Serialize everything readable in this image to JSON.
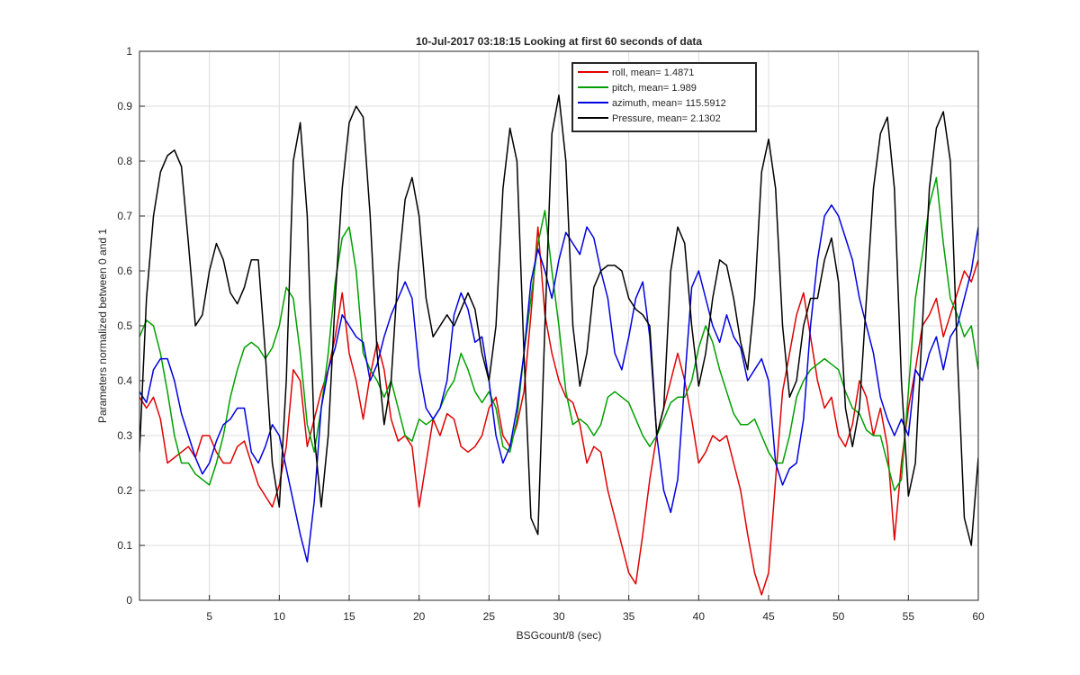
{
  "chart_data": {
    "type": "line",
    "title": "10-Jul-2017 03:18:15 Looking at first 60 seconds of data",
    "xlabel": "BSGcount/8 (sec)",
    "ylabel": "Parameters normalized between 0 and 1",
    "xlim": [
      0,
      60
    ],
    "ylim": [
      0,
      1
    ],
    "xticks": [
      5,
      10,
      15,
      20,
      25,
      30,
      35,
      40,
      45,
      50,
      55,
      60
    ],
    "yticks": [
      0,
      0.1,
      0.2,
      0.3,
      0.4,
      0.5,
      0.6,
      0.7,
      0.8,
      0.9,
      1
    ],
    "grid": true,
    "legend": "upper right",
    "x": [
      0,
      0.5,
      1,
      1.5,
      2,
      2.5,
      3,
      3.5,
      4,
      4.5,
      5,
      5.5,
      6,
      6.5,
      7,
      7.5,
      8,
      8.5,
      9,
      9.5,
      10,
      10.5,
      11,
      11.5,
      12,
      12.5,
      13,
      13.5,
      14,
      14.5,
      15,
      15.5,
      16,
      16.5,
      17,
      17.5,
      18,
      18.5,
      19,
      19.5,
      20,
      20.5,
      21,
      21.5,
      22,
      22.5,
      23,
      23.5,
      24,
      24.5,
      25,
      25.5,
      26,
      26.5,
      27,
      27.5,
      28,
      28.5,
      29,
      29.5,
      30,
      30.5,
      31,
      31.5,
      32,
      32.5,
      33,
      33.5,
      34,
      34.5,
      35,
      35.5,
      36,
      36.5,
      37,
      37.5,
      38,
      38.5,
      39,
      39.5,
      40,
      40.5,
      41,
      41.5,
      42,
      42.5,
      43,
      43.5,
      44,
      44.5,
      45,
      45.5,
      46,
      46.5,
      47,
      47.5,
      48,
      48.5,
      49,
      49.5,
      50,
      50.5,
      51,
      51.5,
      52,
      52.5,
      53,
      53.5,
      54,
      54.5,
      55,
      55.5,
      56,
      56.5,
      57,
      57.5,
      58,
      58.5,
      59,
      59.5,
      60
    ],
    "series": [
      {
        "name": "roll, mean= 1.4871",
        "color": "#e00000",
        "values": [
          0.37,
          0.35,
          0.37,
          0.33,
          0.25,
          0.26,
          0.27,
          0.28,
          0.26,
          0.3,
          0.3,
          0.27,
          0.25,
          0.25,
          0.28,
          0.29,
          0.25,
          0.21,
          0.19,
          0.17,
          0.21,
          0.28,
          0.42,
          0.4,
          0.28,
          0.33,
          0.38,
          0.42,
          0.48,
          0.56,
          0.45,
          0.4,
          0.33,
          0.41,
          0.47,
          0.42,
          0.33,
          0.29,
          0.3,
          0.28,
          0.17,
          0.25,
          0.33,
          0.3,
          0.34,
          0.33,
          0.28,
          0.27,
          0.28,
          0.3,
          0.35,
          0.37,
          0.3,
          0.28,
          0.32,
          0.38,
          0.52,
          0.68,
          0.52,
          0.45,
          0.4,
          0.37,
          0.36,
          0.32,
          0.25,
          0.28,
          0.27,
          0.2,
          0.15,
          0.1,
          0.05,
          0.03,
          0.12,
          0.22,
          0.3,
          0.35,
          0.4,
          0.45,
          0.4,
          0.33,
          0.25,
          0.27,
          0.3,
          0.29,
          0.3,
          0.25,
          0.2,
          0.12,
          0.05,
          0.01,
          0.05,
          0.22,
          0.38,
          0.45,
          0.52,
          0.56,
          0.48,
          0.4,
          0.35,
          0.37,
          0.3,
          0.28,
          0.32,
          0.4,
          0.37,
          0.3,
          0.35,
          0.28,
          0.11,
          0.25,
          0.35,
          0.42,
          0.5,
          0.52,
          0.55,
          0.48,
          0.52,
          0.56,
          0.6,
          0.58,
          0.62
        ]
      },
      {
        "name": "pitch, mean= 1.989",
        "color": "#00a000",
        "values": [
          0.48,
          0.51,
          0.5,
          0.45,
          0.38,
          0.3,
          0.25,
          0.25,
          0.23,
          0.22,
          0.21,
          0.25,
          0.3,
          0.37,
          0.42,
          0.46,
          0.47,
          0.46,
          0.44,
          0.46,
          0.5,
          0.57,
          0.55,
          0.45,
          0.32,
          0.27,
          0.35,
          0.45,
          0.58,
          0.66,
          0.68,
          0.6,
          0.45,
          0.42,
          0.4,
          0.37,
          0.4,
          0.35,
          0.3,
          0.29,
          0.33,
          0.32,
          0.33,
          0.35,
          0.38,
          0.4,
          0.45,
          0.42,
          0.38,
          0.36,
          0.38,
          0.35,
          0.28,
          0.27,
          0.33,
          0.45,
          0.55,
          0.65,
          0.71,
          0.6,
          0.5,
          0.38,
          0.32,
          0.33,
          0.32,
          0.3,
          0.32,
          0.37,
          0.38,
          0.37,
          0.36,
          0.33,
          0.3,
          0.28,
          0.3,
          0.33,
          0.36,
          0.37,
          0.37,
          0.4,
          0.46,
          0.5,
          0.47,
          0.42,
          0.38,
          0.34,
          0.32,
          0.32,
          0.33,
          0.3,
          0.27,
          0.25,
          0.25,
          0.3,
          0.37,
          0.4,
          0.42,
          0.43,
          0.44,
          0.43,
          0.42,
          0.38,
          0.35,
          0.34,
          0.31,
          0.3,
          0.3,
          0.25,
          0.2,
          0.22,
          0.38,
          0.55,
          0.63,
          0.72,
          0.77,
          0.65,
          0.55,
          0.52,
          0.48,
          0.5,
          0.42
        ]
      },
      {
        "name": "azimuth, mean= 115.5912",
        "color": "#0000e0",
        "values": [
          0.38,
          0.36,
          0.42,
          0.44,
          0.44,
          0.4,
          0.34,
          0.3,
          0.26,
          0.23,
          0.25,
          0.29,
          0.32,
          0.33,
          0.35,
          0.35,
          0.27,
          0.25,
          0.28,
          0.32,
          0.3,
          0.24,
          0.18,
          0.12,
          0.07,
          0.18,
          0.35,
          0.42,
          0.46,
          0.52,
          0.5,
          0.48,
          0.47,
          0.4,
          0.43,
          0.48,
          0.52,
          0.55,
          0.58,
          0.55,
          0.42,
          0.35,
          0.33,
          0.35,
          0.4,
          0.52,
          0.56,
          0.53,
          0.47,
          0.48,
          0.4,
          0.3,
          0.25,
          0.28,
          0.35,
          0.45,
          0.58,
          0.64,
          0.6,
          0.55,
          0.62,
          0.67,
          0.65,
          0.63,
          0.68,
          0.66,
          0.6,
          0.55,
          0.45,
          0.42,
          0.48,
          0.55,
          0.58,
          0.48,
          0.3,
          0.2,
          0.16,
          0.22,
          0.4,
          0.57,
          0.6,
          0.55,
          0.5,
          0.47,
          0.52,
          0.48,
          0.46,
          0.4,
          0.42,
          0.44,
          0.4,
          0.25,
          0.21,
          0.24,
          0.25,
          0.33,
          0.5,
          0.62,
          0.7,
          0.72,
          0.7,
          0.66,
          0.62,
          0.55,
          0.5,
          0.45,
          0.37,
          0.33,
          0.3,
          0.33,
          0.3,
          0.42,
          0.4,
          0.45,
          0.48,
          0.42,
          0.48,
          0.5,
          0.55,
          0.6,
          0.68
        ]
      },
      {
        "name": "Pressure, mean= 2.1302",
        "color": "#000000",
        "values": [
          0.27,
          0.55,
          0.7,
          0.78,
          0.81,
          0.82,
          0.79,
          0.65,
          0.5,
          0.52,
          0.6,
          0.65,
          0.62,
          0.56,
          0.54,
          0.57,
          0.62,
          0.62,
          0.45,
          0.25,
          0.17,
          0.4,
          0.8,
          0.87,
          0.7,
          0.3,
          0.17,
          0.3,
          0.55,
          0.75,
          0.87,
          0.9,
          0.88,
          0.7,
          0.45,
          0.32,
          0.4,
          0.6,
          0.73,
          0.77,
          0.7,
          0.55,
          0.48,
          0.5,
          0.52,
          0.5,
          0.53,
          0.56,
          0.53,
          0.45,
          0.4,
          0.5,
          0.75,
          0.86,
          0.8,
          0.45,
          0.15,
          0.12,
          0.5,
          0.85,
          0.92,
          0.8,
          0.5,
          0.39,
          0.45,
          0.57,
          0.6,
          0.61,
          0.61,
          0.6,
          0.55,
          0.53,
          0.52,
          0.5,
          0.3,
          0.35,
          0.6,
          0.68,
          0.65,
          0.5,
          0.39,
          0.45,
          0.55,
          0.62,
          0.61,
          0.55,
          0.47,
          0.42,
          0.55,
          0.78,
          0.84,
          0.75,
          0.5,
          0.37,
          0.4,
          0.5,
          0.55,
          0.55,
          0.62,
          0.66,
          0.58,
          0.35,
          0.28,
          0.35,
          0.55,
          0.75,
          0.85,
          0.88,
          0.75,
          0.4,
          0.19,
          0.25,
          0.5,
          0.75,
          0.86,
          0.89,
          0.8,
          0.45,
          0.15,
          0.1,
          0.26
        ]
      }
    ]
  }
}
